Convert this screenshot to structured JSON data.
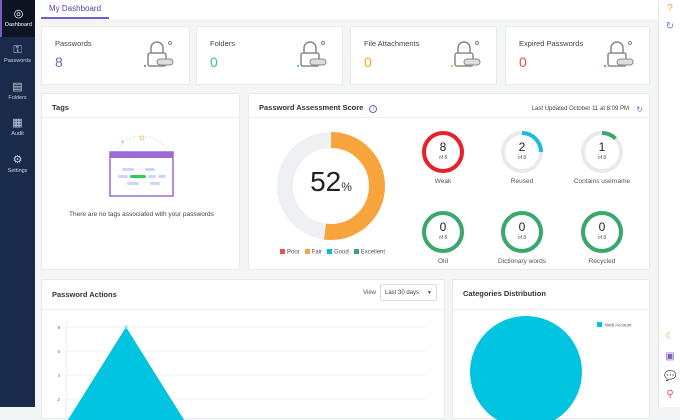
{
  "sidebar": {
    "items": [
      {
        "label": "Dashboard",
        "icon": "compass-icon",
        "active": true
      },
      {
        "label": "Passwords",
        "icon": "key-icon"
      },
      {
        "label": "Folders",
        "icon": "folder-icon"
      },
      {
        "label": "Audit",
        "icon": "audit-icon"
      },
      {
        "label": "Settings",
        "icon": "gear-icon"
      }
    ]
  },
  "header": {
    "tab": "My Dashboard"
  },
  "stats": [
    {
      "label": "Passwords",
      "value": "8",
      "color": "#7c5cc4",
      "icon": "lock-icon"
    },
    {
      "label": "Folders",
      "value": "0",
      "color": "#2ecc8a",
      "icon": "folder-doc-icon"
    },
    {
      "label": "File Attachments",
      "value": "0",
      "color": "#f5a623",
      "icon": "attachment-icon"
    },
    {
      "label": "Expired Passwords",
      "value": "0",
      "color": "#e84b4b",
      "icon": "expired-lock-icon"
    }
  ],
  "tags": {
    "title": "Tags",
    "empty": "There are no tags associated with your passwords"
  },
  "assessment": {
    "title": "Password Assessment Score",
    "updated": "Last Updated October 11 at 8:09 PM",
    "score": "52",
    "unit": "%",
    "score_color": "#f7a43c",
    "legend": [
      {
        "label": "Poor",
        "color": "#ef5350"
      },
      {
        "label": "Fair",
        "color": "#f7a43c"
      },
      {
        "label": "Good",
        "color": "#00bcd4"
      },
      {
        "label": "Excellent",
        "color": "#3aa76d"
      }
    ],
    "metrics": [
      {
        "value": "8",
        "of": "of 8",
        "label": "Weak",
        "count": 8,
        "total": 8,
        "color": "#e8202a"
      },
      {
        "value": "2",
        "of": "of 8",
        "label": "Reused",
        "count": 2,
        "total": 8,
        "color": "#1ebbe0"
      },
      {
        "value": "1",
        "of": "of 8",
        "label": "Contains username",
        "count": 1,
        "total": 8,
        "color": "#3aa76d"
      },
      {
        "value": "0",
        "of": "of 8",
        "label": "Old",
        "count": 0,
        "total": 8,
        "color": "#3aa76d"
      },
      {
        "value": "0",
        "of": "of 8",
        "label": "Dictionary words",
        "count": 0,
        "total": 8,
        "color": "#3aa76d"
      },
      {
        "value": "0",
        "of": "of 8",
        "label": "Recycled",
        "count": 0,
        "total": 8,
        "color": "#3aa76d"
      }
    ]
  },
  "actions": {
    "title": "Password Actions",
    "view_label": "View",
    "view_value": "Last 30 days"
  },
  "categories": {
    "title": "Categories Distribution"
  },
  "chart_data": [
    {
      "type": "area",
      "y_ticks": [
        "2",
        "4",
        "6",
        "8"
      ],
      "ylim": [
        0,
        8
      ],
      "values": [
        0,
        8,
        0,
        0,
        0,
        0,
        0
      ],
      "color": "#00c4e0",
      "grid": true
    },
    {
      "type": "pie",
      "labels": [
        "Web Account"
      ],
      "values": [
        100
      ],
      "colors": [
        "#00c4e0"
      ],
      "legend": "top-right"
    }
  ]
}
